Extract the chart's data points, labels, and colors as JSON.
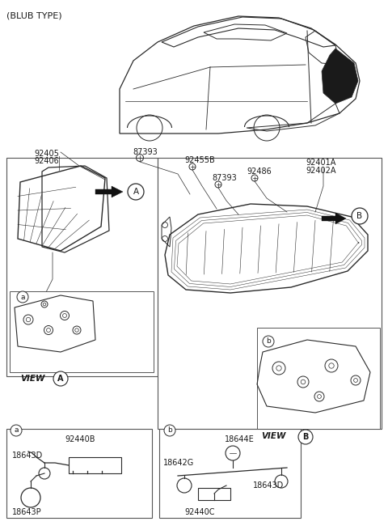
{
  "bg_color": "#ffffff",
  "fig_width": 4.8,
  "fig_height": 6.55,
  "dpi": 100,
  "text_color": "#1a1a1a",
  "line_color": "#2a2a2a",
  "title": "(BLUB TYPE)",
  "labels": {
    "92405_92406": [
      "92405",
      "92406"
    ],
    "87393_L": "87393",
    "92455B": "92455B",
    "87393_R": "87393",
    "92486": "92486",
    "92401A_92402A": [
      "92401A",
      "92402A"
    ],
    "view_A": "VIEW",
    "circle_A": "A",
    "view_B": "VIEW",
    "circle_B": "B",
    "box_a_labels": [
      "a",
      "92440B",
      "18643D",
      "18643P"
    ],
    "box_b_labels": [
      "b",
      "18644E",
      "18642G",
      "92440C",
      "18643D"
    ]
  }
}
